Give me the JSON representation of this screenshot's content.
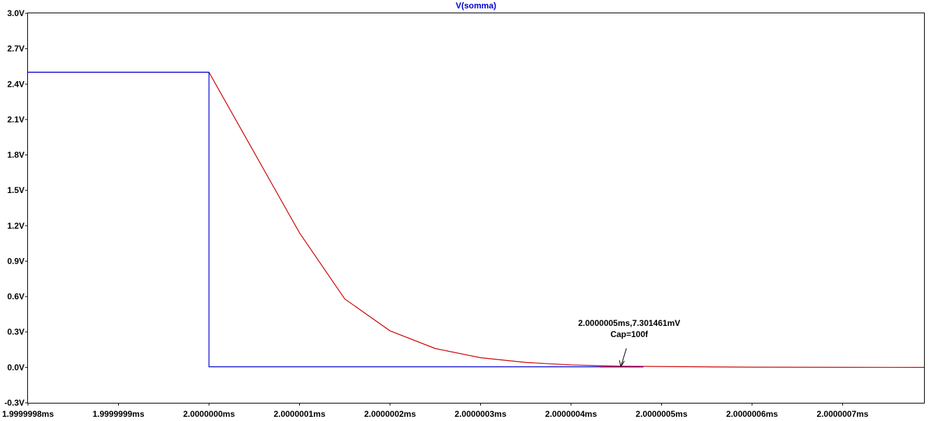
{
  "chart_data": {
    "type": "line",
    "title": "V(somma)",
    "title_color": "#0000cc",
    "x_unit": "ms",
    "xlim": [
      1.9999998,
      2.00000079
    ],
    "ylim": [
      -0.3,
      3.0
    ],
    "x_ticks": [
      1.9999998,
      1.9999999,
      2.0,
      2.0000001,
      2.0000002,
      2.0000003,
      2.0000004,
      2.0000005,
      2.0000006,
      2.0000007
    ],
    "x_tick_labels": [
      "1.9999998ms",
      "1.9999999ms",
      "2.0000000ms",
      "2.0000001ms",
      "2.0000002ms",
      "2.0000003ms",
      "2.0000004ms",
      "2.0000005ms",
      "2.0000006ms",
      "2.0000007ms"
    ],
    "y_ticks": [
      3.0,
      2.7,
      2.4,
      2.1,
      1.8,
      1.5,
      1.2,
      0.9,
      0.6,
      0.3,
      0.0,
      -0.3
    ],
    "y_tick_labels": [
      "3.0V",
      "2.7V",
      "2.4V",
      "2.1V",
      "1.8V",
      "1.5V",
      "1.2V",
      "0.9V",
      "0.6V",
      "0.3V",
      "0.0V",
      "-0.3V"
    ],
    "grid": false,
    "series": [
      {
        "color": "#cc0000",
        "x": [
          1.9999998,
          2.0,
          2.00000005,
          2.0000001,
          2.00000015,
          2.0000002,
          2.00000025,
          2.0000003,
          2.00000035,
          2.0000004,
          2.00000045,
          2.0000005,
          2.0000006,
          2.0000007,
          2.00000079
        ],
        "y": [
          2.5,
          2.5,
          1.82,
          1.14,
          0.58,
          0.31,
          0.16,
          0.082,
          0.042,
          0.021,
          0.011,
          0.0073,
          0.002,
          0.0005,
          0.0
        ]
      },
      {
        "color": "#0000cc",
        "x": [
          1.9999998,
          2.0,
          2.0,
          2.00000048
        ],
        "y": [
          2.5,
          2.5,
          0.005,
          0.005
        ]
      }
    ],
    "annotation": {
      "lines": [
        "2.0000005ms,7.301461mV",
        "Cap=100f"
      ],
      "point": [
        2.000000455,
        0.007
      ]
    }
  }
}
